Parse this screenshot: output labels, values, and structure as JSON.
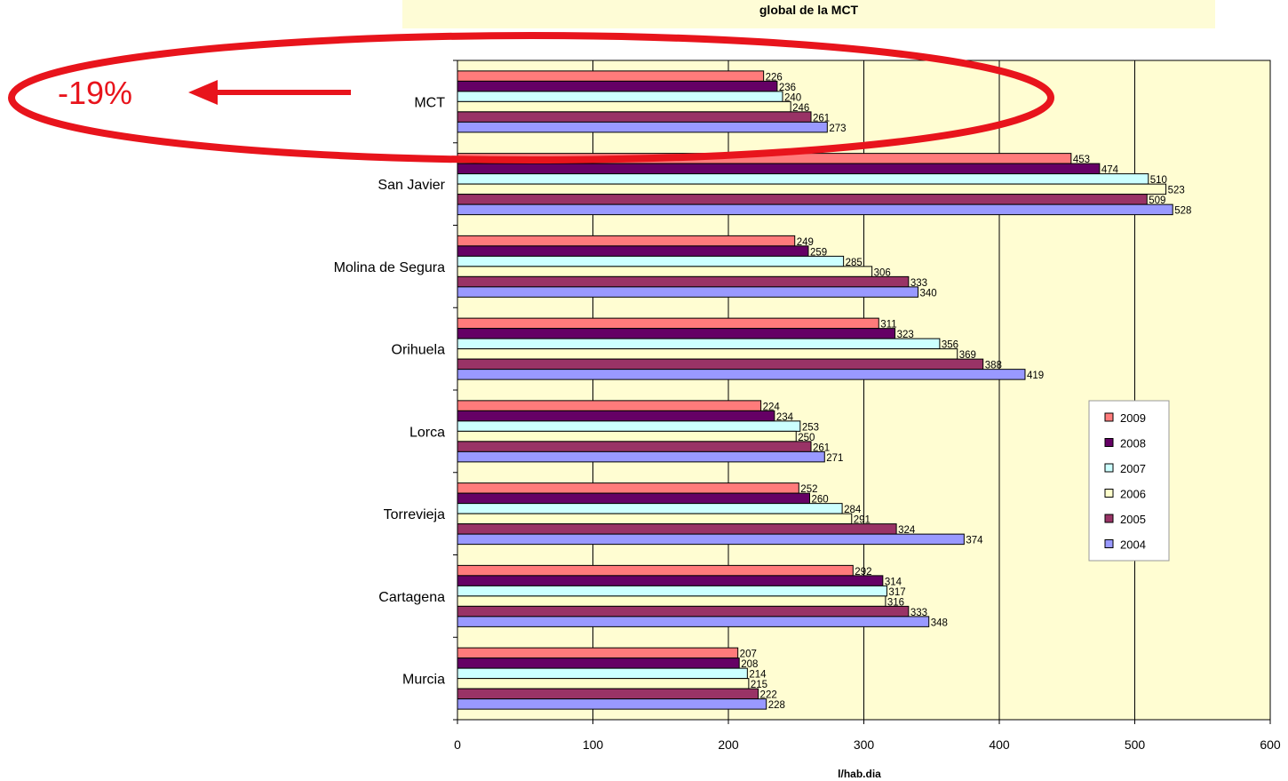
{
  "chart_title": "global de la MCT",
  "annotation": {
    "text": "-19%",
    "color": "#e8141c"
  },
  "chart_data": {
    "type": "bar",
    "orientation": "horizontal",
    "title": "global de la MCT",
    "xlabel": "l/hab.dia",
    "ylabel": "",
    "xlim": [
      0,
      600
    ],
    "xticks": [
      0,
      100,
      200,
      300,
      400,
      500,
      600
    ],
    "grid": true,
    "plot_background": "#fffdd2",
    "legend_position": "right",
    "categories": [
      "MCT",
      "San Javier",
      "Molina de Segura",
      "Orihuela",
      "Lorca",
      "Torrevieja",
      "Cartagena",
      "Murcia"
    ],
    "series": [
      {
        "name": "2009",
        "color": "#ff7b7b",
        "values": [
          226,
          453,
          249,
          311,
          224,
          252,
          292,
          207
        ]
      },
      {
        "name": "2008",
        "color": "#650065",
        "values": [
          236,
          474,
          259,
          323,
          234,
          260,
          314,
          208
        ]
      },
      {
        "name": "2007",
        "color": "#ccffff",
        "values": [
          240,
          510,
          285,
          356,
          253,
          284,
          317,
          214
        ]
      },
      {
        "name": "2006",
        "color": "#ffffcc",
        "values": [
          246,
          523,
          306,
          369,
          250,
          291,
          316,
          215
        ]
      },
      {
        "name": "2005",
        "color": "#993366",
        "values": [
          261,
          509,
          333,
          388,
          261,
          324,
          333,
          222
        ]
      },
      {
        "name": "2004",
        "color": "#9999ff",
        "values": [
          273,
          528,
          340,
          419,
          271,
          374,
          348,
          228
        ]
      }
    ]
  }
}
